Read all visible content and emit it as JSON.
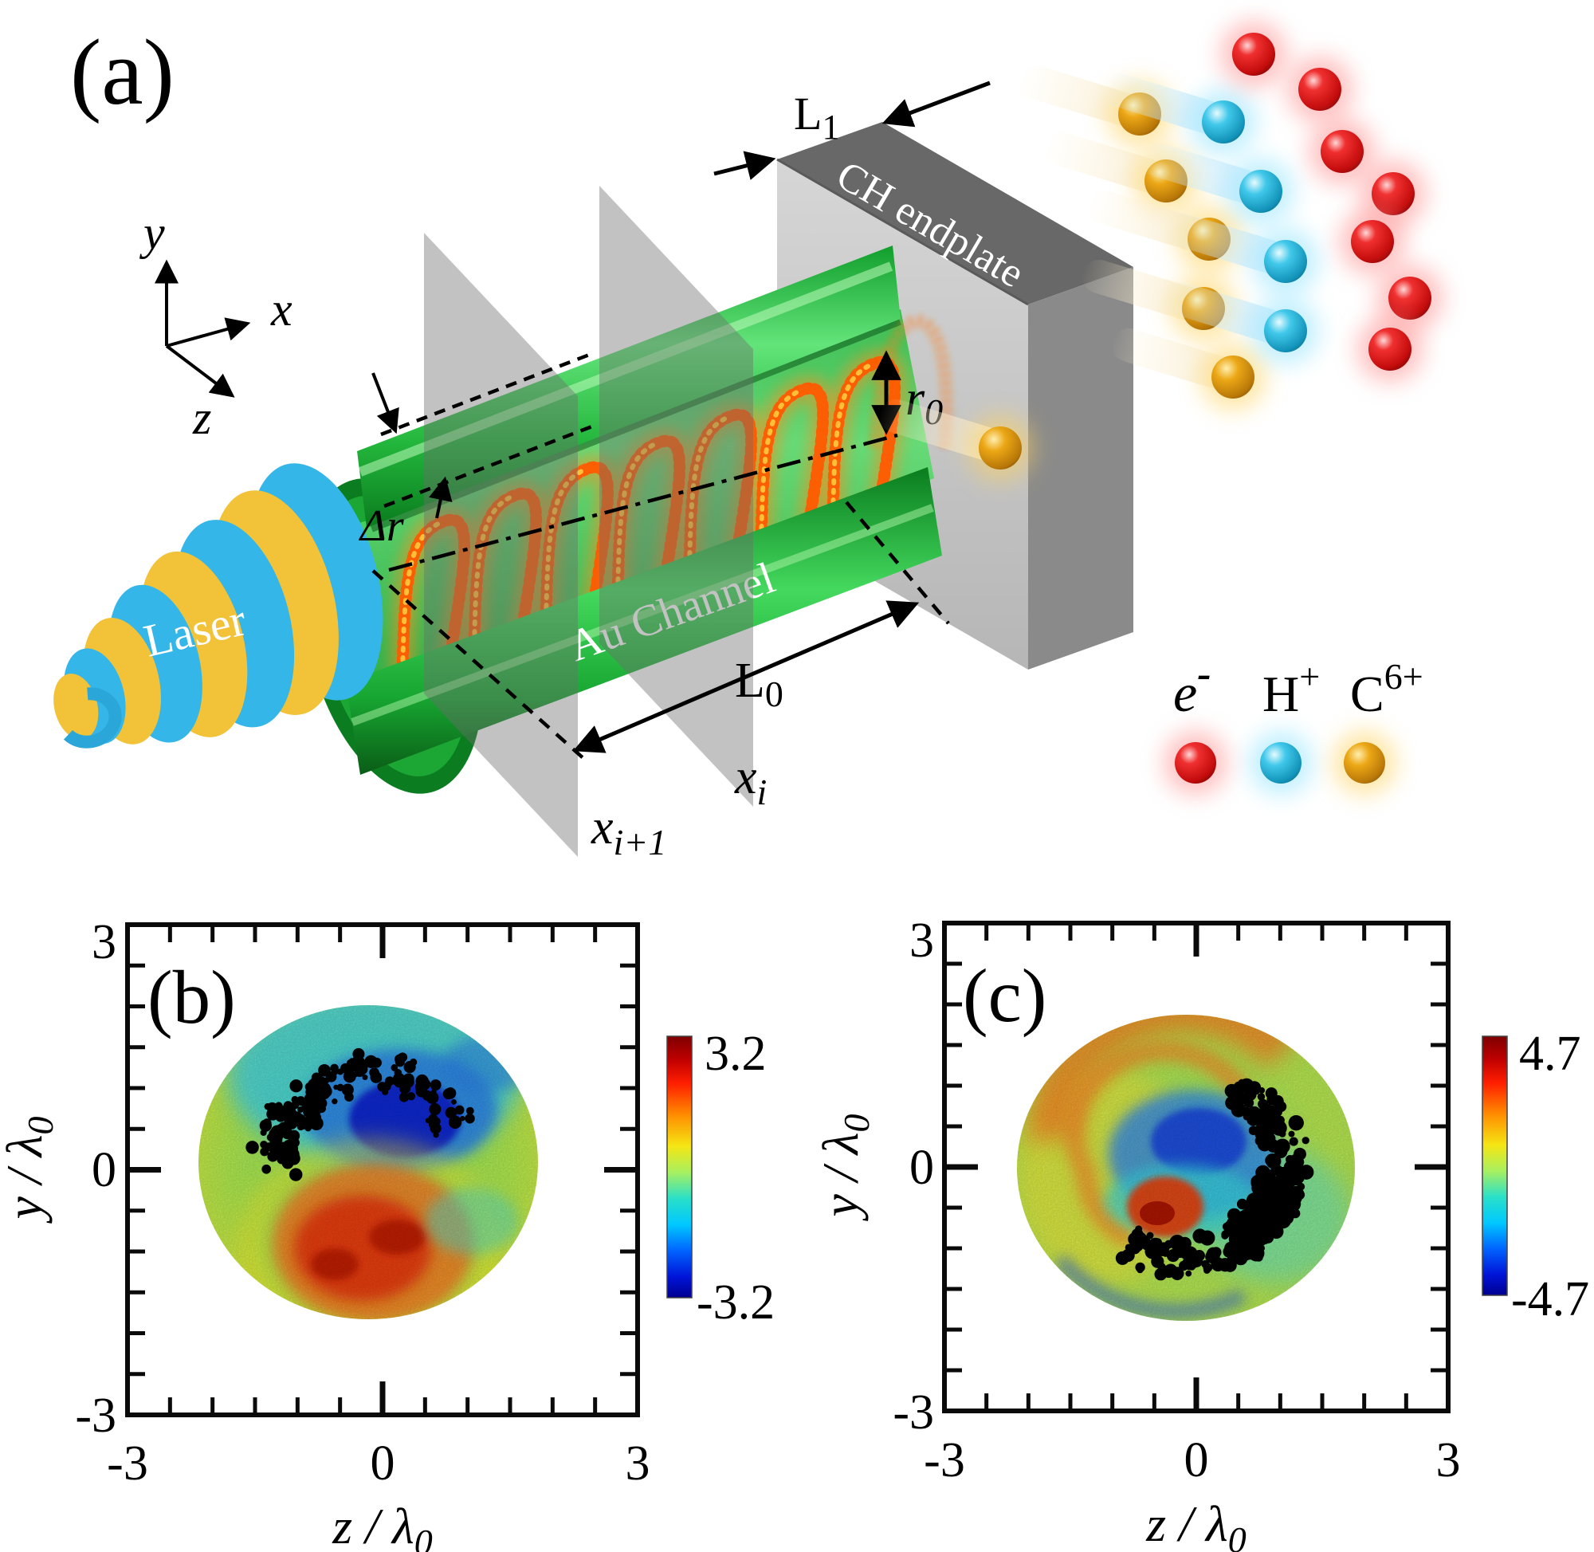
{
  "panel_a": {
    "label": "(a)",
    "axis_triad": {
      "x": "x",
      "y": "y",
      "z": "z"
    },
    "laser_label": "Laser",
    "channel_label": "Au Channel",
    "endplate_label": "CH endplate",
    "dims": {
      "L1": "L",
      "L1_sub": "1",
      "L0": "L",
      "L0_sub": "0",
      "r0": "r",
      "r0_sub": "0",
      "delta_r": "Δr",
      "x_i": "x",
      "x_i_sub": "i",
      "x_i1": "x",
      "x_i1_sub": "i+1"
    },
    "legend": {
      "electron": "e",
      "electron_sup": "-",
      "proton": "H",
      "proton_sup": "+",
      "carbon": "C",
      "carbon_sup": "6+",
      "electron_color": "#d81a1a",
      "proton_color": "#2cb9dd",
      "carbon_color": "#d9950c"
    },
    "colors": {
      "channel_green": "#23c33b",
      "endplate_gray": "#c9c9c9",
      "laser_blue": "#35b6e8",
      "laser_yellow": "#f2c238",
      "beam_orange": "#f26a12"
    }
  },
  "chart_data": [
    {
      "id": "b",
      "type": "heatmap",
      "panel_label": "(b)",
      "xlabel_main": "z / λ",
      "xlabel_sub": "0",
      "ylabel_main": "y / λ",
      "ylabel_sub": "0",
      "xlim": [
        -3,
        3
      ],
      "ylim": [
        -3,
        3
      ],
      "xtick_labels": [
        "-3",
        "0",
        "3"
      ],
      "ytick_labels": [
        "3",
        "0",
        "-3"
      ],
      "minor_tick_divisions": 12,
      "colormap": "jet",
      "colorbar_max_label": "3.2",
      "colorbar_min_label": "-3.2",
      "colorbar_range": [
        -3.2,
        3.2
      ],
      "disk": {
        "center_z": -0.15,
        "center_y": 0.1,
        "radius_lambda": 2.0
      },
      "features": [
        "cyan-blue region in upper half with deep blue lobe right of top-center",
        "red-orange lobe in lower half with dark red core",
        "yellow-green speckled periphery",
        "arc of black electron macro-particles over the upper-left at ~1.1 radius"
      ],
      "black_dots": {
        "count": 120,
        "angle_start_deg": 168,
        "angle_end_deg": 338,
        "radius_frac": 0.56,
        "radius_spread_frac": 0.13,
        "cluster_angle_deg": 212,
        "cluster_extra": 70,
        "seed": 7
      }
    },
    {
      "id": "c",
      "type": "heatmap",
      "panel_label": "(c)",
      "xlabel_main": "z / λ",
      "xlabel_sub": "0",
      "ylabel_main": "y / λ",
      "ylabel_sub": "0",
      "xlim": [
        -3,
        3
      ],
      "ylim": [
        -3,
        3
      ],
      "xtick_labels": [
        "-3",
        "0",
        "3"
      ],
      "ytick_labels": [
        "3",
        "0",
        "-3"
      ],
      "minor_tick_divisions": 12,
      "colormap": "jet",
      "colorbar_max_label": "4.7",
      "colorbar_min_label": "-4.7",
      "colorbar_range": [
        -4.7,
        4.7
      ],
      "disk": {
        "center_z": 0.0,
        "center_y": 0.0,
        "radius_lambda": 2.0
      },
      "features": [
        "orange spiral arm winding from upper-left periphery toward center",
        "blue spiral core just right of center with cyan fringe",
        "compact red hotspot below-left of the blue core",
        "cyan-green lower and right periphery",
        "thick arc of black electron macro-particles on the right side"
      ],
      "black_dots": {
        "count": 230,
        "angle_start_deg": -62,
        "angle_end_deg": 126,
        "radius_frac": 0.6,
        "radius_spread_frac": 0.11,
        "cluster_angle_deg": 30,
        "cluster_extra": 140,
        "seed": 11
      }
    }
  ]
}
